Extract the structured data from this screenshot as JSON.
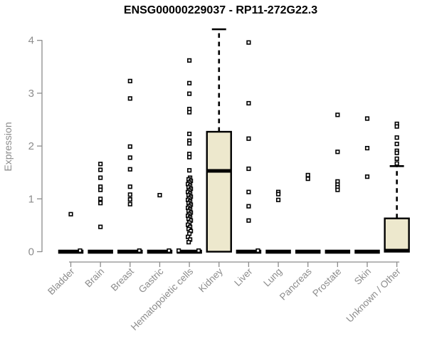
{
  "chart_data": {
    "type": "boxplot",
    "title": "ENSG00000229037 - RP11-272G22.3",
    "ylabel": "Expression",
    "xlabel": "",
    "ylim": [
      0,
      4
    ],
    "yticks": [
      0,
      1,
      2,
      3,
      4
    ],
    "grid": false,
    "legend": "none",
    "categories": [
      "Bladder",
      "Brain",
      "Breast",
      "Gastric",
      "Hematopoietic cells",
      "Kidney",
      "Liver",
      "Lung",
      "Pancreas",
      "Prostate",
      "Skin",
      "Unknown / Other"
    ],
    "boxes": [
      {
        "category": "Bladder",
        "q1": 0,
        "median": 0,
        "q3": 0,
        "whisker_low": 0,
        "whisker_high": 0
      },
      {
        "category": "Brain",
        "q1": 0,
        "median": 0,
        "q3": 0,
        "whisker_low": 0,
        "whisker_high": 0
      },
      {
        "category": "Breast",
        "q1": 0,
        "median": 0,
        "q3": 0,
        "whisker_low": 0,
        "whisker_high": 0
      },
      {
        "category": "Gastric",
        "q1": 0,
        "median": 0,
        "q3": 0,
        "whisker_low": 0,
        "whisker_high": 0
      },
      {
        "category": "Hematopoietic cells",
        "q1": 0,
        "median": 0,
        "q3": 0,
        "whisker_low": 0,
        "whisker_high": 0
      },
      {
        "category": "Kidney",
        "q1": 0,
        "median": 1.53,
        "q3": 2.27,
        "whisker_low": 0,
        "whisker_high": 4.21
      },
      {
        "category": "Liver",
        "q1": 0,
        "median": 0,
        "q3": 0,
        "whisker_low": 0,
        "whisker_high": 0
      },
      {
        "category": "Lung",
        "q1": 0,
        "median": 0,
        "q3": 0,
        "whisker_low": 0,
        "whisker_high": 0
      },
      {
        "category": "Pancreas",
        "q1": 0,
        "median": 0,
        "q3": 0,
        "whisker_low": 0,
        "whisker_high": 0
      },
      {
        "category": "Prostate",
        "q1": 0,
        "median": 0,
        "q3": 0,
        "whisker_low": 0,
        "whisker_high": 0
      },
      {
        "category": "Skin",
        "q1": 0,
        "median": 0,
        "q3": 0,
        "whisker_low": 0,
        "whisker_high": 0
      },
      {
        "category": "Unknown / Other",
        "q1": 0,
        "median": 0.02,
        "q3": 0.63,
        "whisker_low": 0,
        "whisker_high": 1.62
      }
    ],
    "points": [
      [
        0.71,
        0.02
      ],
      [
        1.66,
        1.55,
        1.4,
        1.23,
        1.17,
        1.0,
        0.92,
        0.47
      ],
      [
        3.23,
        2.9,
        1.99,
        1.78,
        1.56,
        1.23,
        1.08,
        0.99,
        0.9,
        0.02
      ],
      [
        1.07,
        0.02
      ],
      [
        3.62,
        3.19,
        2.99,
        2.7,
        2.64,
        2.23,
        2.1,
        2.05,
        1.85,
        1.79,
        1.54,
        1.4,
        1.37,
        1.34,
        1.31,
        1.28,
        1.25,
        1.22,
        1.19,
        1.16,
        1.13,
        1.1,
        1.07,
        1.04,
        1.01,
        0.98,
        0.95,
        0.92,
        0.89,
        0.86,
        0.83,
        0.8,
        0.77,
        0.74,
        0.71,
        0.68,
        0.65,
        0.62,
        0.59,
        0.55,
        0.51,
        0.47,
        0.43,
        0.39,
        0.34,
        0.28,
        0.23,
        0.18,
        0.02,
        0.02
      ],
      [],
      [
        3.96,
        2.81,
        2.14,
        1.57,
        1.13,
        0.86,
        0.59,
        0.02
      ],
      [
        1.13,
        1.09,
        0.98
      ],
      [
        1.45,
        1.38
      ],
      [
        2.59,
        1.89,
        1.33,
        1.27,
        1.22,
        1.17
      ],
      [
        2.52,
        1.96,
        1.42
      ],
      [
        2.42,
        2.37,
        2.16,
        2.04,
        1.91,
        1.87,
        1.76,
        1.67
      ]
    ],
    "colors": {
      "box_fill": "#ede8cd",
      "stroke": "#000000",
      "axis": "#8c8c8c",
      "tick_text": "#8c8c8c",
      "title_text": "#000000",
      "background": "#ffffff"
    }
  }
}
